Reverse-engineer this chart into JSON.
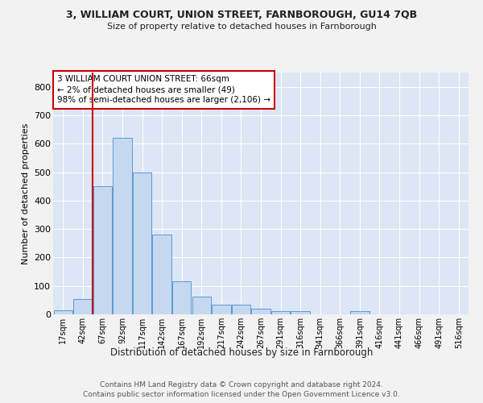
{
  "title": "3, WILLIAM COURT, UNION STREET, FARNBOROUGH, GU14 7QB",
  "subtitle": "Size of property relative to detached houses in Farnborough",
  "xlabel": "Distribution of detached houses by size in Farnborough",
  "ylabel": "Number of detached properties",
  "bar_color": "#c5d8ef",
  "bar_edge_color": "#5b9bd5",
  "background_color": "#dce6f5",
  "fig_background_color": "#f2f2f2",
  "grid_color": "#ffffff",
  "bin_labels": [
    "17sqm",
    "42sqm",
    "67sqm",
    "92sqm",
    "117sqm",
    "142sqm",
    "167sqm",
    "192sqm",
    "217sqm",
    "242sqm",
    "267sqm",
    "291sqm",
    "316sqm",
    "341sqm",
    "366sqm",
    "391sqm",
    "416sqm",
    "441sqm",
    "466sqm",
    "491sqm",
    "516sqm"
  ],
  "bar_heights": [
    13,
    55,
    450,
    620,
    500,
    280,
    115,
    63,
    35,
    35,
    20,
    10,
    10,
    0,
    0,
    10,
    0,
    0,
    0,
    0,
    0
  ],
  "ylim": [
    0,
    850
  ],
  "yticks": [
    0,
    100,
    200,
    300,
    400,
    500,
    600,
    700,
    800
  ],
  "red_line_x": 1.5,
  "annotation_text": "3 WILLIAM COURT UNION STREET: 66sqm\n← 2% of detached houses are smaller (49)\n98% of semi-detached houses are larger (2,106) →",
  "annotation_box_facecolor": "#ffffff",
  "annotation_box_edgecolor": "#cc0000",
  "red_line_color": "#cc0000",
  "footer_line1": "Contains HM Land Registry data © Crown copyright and database right 2024.",
  "footer_line2": "Contains public sector information licensed under the Open Government Licence v3.0."
}
